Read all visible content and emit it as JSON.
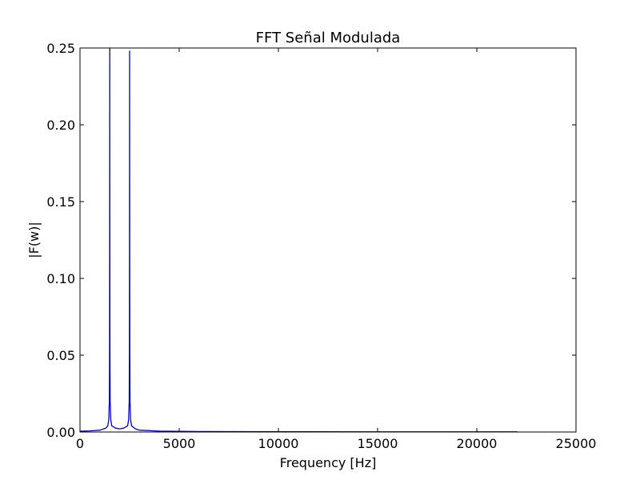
{
  "chart_data": {
    "type": "line",
    "title": "FFT Señal Modulada",
    "xlabel": "Frequency [Hz]",
    "ylabel": "|F(w)|",
    "xlim": [
      0,
      25000
    ],
    "ylim": [
      0,
      0.25
    ],
    "grid": false,
    "xticks": [
      0,
      5000,
      10000,
      15000,
      20000,
      25000
    ],
    "xtick_labels": [
      "0",
      "5000",
      "10000",
      "15000",
      "20000",
      "25000"
    ],
    "yticks": [
      0,
      0.05,
      0.1,
      0.15,
      0.2,
      0.25
    ],
    "ytick_labels": [
      "0.00",
      "0.05",
      "0.10",
      "0.15",
      "0.20",
      "0.25"
    ],
    "series": [
      {
        "color": "#0000cc",
        "x": [
          0,
          500,
          1000,
          1300,
          1400,
          1450,
          1480,
          1490,
          1495,
          1500,
          1505,
          1510,
          1520,
          1550,
          1600,
          1800,
          2000,
          2200,
          2400,
          2450,
          2480,
          2490,
          2495,
          2500,
          2505,
          2510,
          2520,
          2550,
          2600,
          2800,
          3000,
          4000,
          6000,
          10000,
          15000,
          20000,
          22050
        ],
        "y": [
          0.0005,
          0.0007,
          0.0012,
          0.0025,
          0.004,
          0.008,
          0.02,
          0.05,
          0.12,
          0.26,
          0.12,
          0.05,
          0.02,
          0.008,
          0.004,
          0.0025,
          0.002,
          0.0025,
          0.004,
          0.008,
          0.02,
          0.05,
          0.12,
          0.248,
          0.12,
          0.05,
          0.02,
          0.008,
          0.004,
          0.002,
          0.0012,
          0.0006,
          0.0003,
          0.0002,
          0.0001,
          0.0001,
          0.0001
        ]
      }
    ]
  }
}
